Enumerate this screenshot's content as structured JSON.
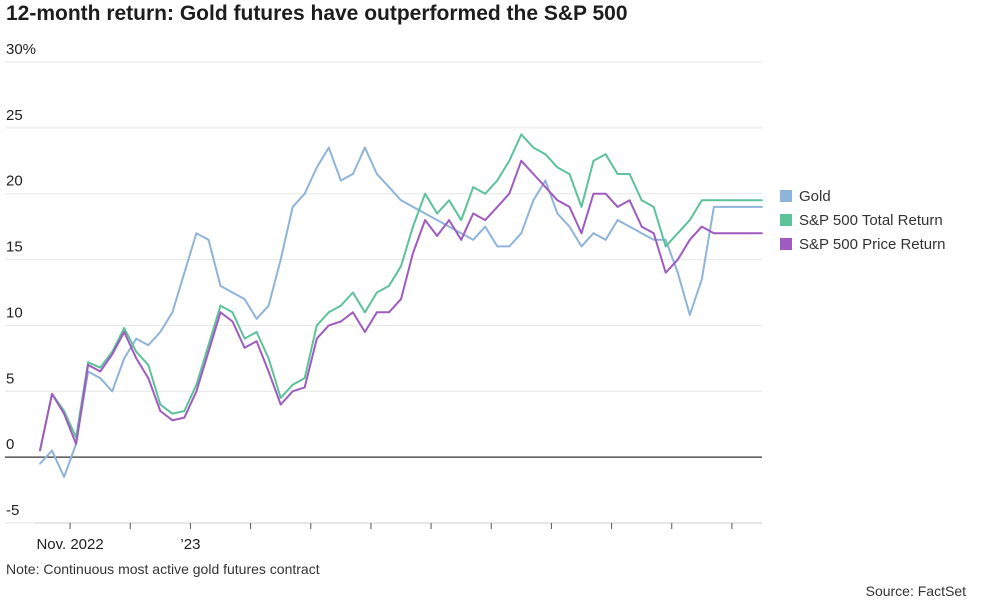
{
  "title": "12-month return: Gold futures have outperformed the S&P 500",
  "note": "Note: Continuous most active gold futures contract",
  "source": "Source: FactSet",
  "colors": {
    "gold": "#8fb4da",
    "total": "#5cc29a",
    "price": "#9f5bbf",
    "grid": "#e6e6e6",
    "zero": "#333333"
  },
  "chart_data": {
    "type": "line",
    "title": "12-month return: Gold futures have outperformed the S&P 500",
    "ylabel": "",
    "xlabel": "",
    "ylim": [
      -5,
      30
    ],
    "yticks": [
      -5,
      0,
      5,
      10,
      15,
      20,
      25,
      30
    ],
    "ytick_labels": [
      "-5",
      "0",
      "5",
      "10",
      "15",
      "20",
      "25",
      "30%"
    ],
    "xlim": [
      0,
      12
    ],
    "xticks": [
      0.5,
      1.5,
      2.5,
      3.5,
      4.5,
      5.5,
      6.5,
      7.5,
      8.5,
      9.5,
      10.5,
      11.5
    ],
    "xtick_labels": [
      {
        "x": 0.5,
        "label": "Nov. 2022"
      },
      {
        "x": 2.5,
        "label": "’23"
      }
    ],
    "legend_position": "right",
    "series": [
      {
        "name": "Gold",
        "color_key": "gold",
        "x": [
          0,
          0.2,
          0.4,
          0.6,
          0.8,
          1.0,
          1.2,
          1.4,
          1.6,
          1.8,
          2.0,
          2.2,
          2.4,
          2.6,
          2.8,
          3.0,
          3.2,
          3.4,
          3.6,
          3.8,
          4.0,
          4.2,
          4.4,
          4.6,
          4.8,
          5.0,
          5.2,
          5.4,
          5.6,
          5.8,
          6.0,
          6.2,
          6.4,
          6.6,
          6.8,
          7.0,
          7.2,
          7.4,
          7.6,
          7.8,
          8.0,
          8.2,
          8.4,
          8.6,
          8.8,
          9.0,
          9.2,
          9.4,
          9.6,
          9.8,
          10.0,
          10.2,
          10.4,
          10.6,
          10.8,
          11.0,
          11.2,
          11.4,
          11.6,
          11.8,
          12.0
        ],
        "values": [
          -0.5,
          0.5,
          -1.5,
          1.0,
          6.5,
          6.0,
          5.0,
          7.5,
          9.0,
          8.5,
          9.5,
          11.0,
          14.0,
          17.0,
          16.5,
          13.0,
          12.5,
          12.0,
          10.5,
          11.5,
          15.0,
          19.0,
          20.0,
          22.0,
          23.5,
          21.0,
          21.5,
          23.5,
          21.5,
          20.5,
          19.5,
          19.0,
          18.5,
          18.0,
          17.5,
          17.0,
          16.5,
          17.5,
          16.0,
          16.0,
          17.0,
          19.5,
          21.0,
          18.5,
          17.5,
          16.0,
          17.0,
          16.5,
          18.0,
          17.5,
          17.0,
          16.5,
          16.5,
          14.0,
          10.8,
          13.5,
          19.0,
          19.0,
          19.0,
          19.0,
          19.0
        ]
      },
      {
        "name": "S&P 500 Total Return",
        "color_key": "total",
        "x": [
          0,
          0.2,
          0.4,
          0.6,
          0.8,
          1.0,
          1.2,
          1.4,
          1.6,
          1.8,
          2.0,
          2.2,
          2.4,
          2.6,
          2.8,
          3.0,
          3.2,
          3.4,
          3.6,
          3.8,
          4.0,
          4.2,
          4.4,
          4.6,
          4.8,
          5.0,
          5.2,
          5.4,
          5.6,
          5.8,
          6.0,
          6.2,
          6.4,
          6.6,
          6.8,
          7.0,
          7.2,
          7.4,
          7.6,
          7.8,
          8.0,
          8.2,
          8.4,
          8.6,
          8.8,
          9.0,
          9.2,
          9.4,
          9.6,
          9.8,
          10.0,
          10.2,
          10.4,
          10.6,
          10.8,
          11.0,
          11.2,
          11.4,
          11.6,
          11.8,
          12.0
        ],
        "values": [
          0.5,
          4.8,
          3.5,
          1.5,
          7.2,
          6.8,
          8.0,
          9.8,
          8.0,
          7.0,
          4.0,
          3.3,
          3.5,
          5.5,
          8.5,
          11.5,
          11.0,
          9.0,
          9.5,
          7.5,
          4.5,
          5.5,
          6.0,
          10.0,
          11.0,
          11.5,
          12.5,
          11.0,
          12.5,
          13.0,
          14.5,
          17.5,
          20.0,
          18.5,
          19.5,
          18.0,
          20.5,
          20.0,
          21.0,
          22.5,
          24.5,
          23.5,
          23.0,
          22.0,
          21.5,
          19.0,
          22.5,
          23.0,
          21.5,
          21.5,
          19.5,
          19.0,
          16.0,
          17.0,
          18.0,
          19.5,
          19.5,
          19.5,
          19.5,
          19.5,
          19.5
        ]
      },
      {
        "name": "S&P 500 Price Return",
        "color_key": "price",
        "x": [
          0,
          0.2,
          0.4,
          0.6,
          0.8,
          1.0,
          1.2,
          1.4,
          1.6,
          1.8,
          2.0,
          2.2,
          2.4,
          2.6,
          2.8,
          3.0,
          3.2,
          3.4,
          3.6,
          3.8,
          4.0,
          4.2,
          4.4,
          4.6,
          4.8,
          5.0,
          5.2,
          5.4,
          5.6,
          5.8,
          6.0,
          6.2,
          6.4,
          6.6,
          6.8,
          7.0,
          7.2,
          7.4,
          7.6,
          7.8,
          8.0,
          8.2,
          8.4,
          8.6,
          8.8,
          9.0,
          9.2,
          9.4,
          9.6,
          9.8,
          10.0,
          10.2,
          10.4,
          10.6,
          10.8,
          11.0,
          11.2,
          11.4,
          11.6,
          11.8,
          12.0
        ],
        "values": [
          0.5,
          4.8,
          3.3,
          1.0,
          7.0,
          6.5,
          7.8,
          9.5,
          7.5,
          6.0,
          3.5,
          2.8,
          3.0,
          5.0,
          8.0,
          11.0,
          10.3,
          8.3,
          8.8,
          6.5,
          4.0,
          5.0,
          5.3,
          9.0,
          10.0,
          10.3,
          11.0,
          9.5,
          11.0,
          11.0,
          12.0,
          15.5,
          18.0,
          16.8,
          18.0,
          16.5,
          18.5,
          18.0,
          19.0,
          20.0,
          22.5,
          21.5,
          20.5,
          19.5,
          19.0,
          17.0,
          20.0,
          20.0,
          19.0,
          19.5,
          17.5,
          17.0,
          14.0,
          15.0,
          16.5,
          17.5,
          17.0,
          17.0,
          17.0,
          17.0,
          17.0
        ]
      }
    ]
  }
}
